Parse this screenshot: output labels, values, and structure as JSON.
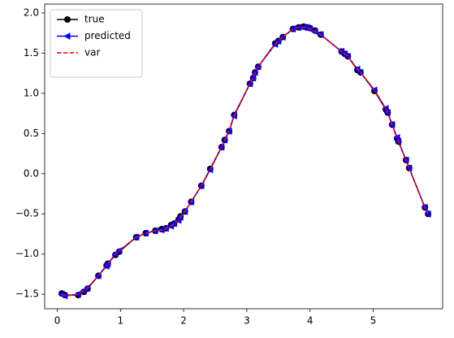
{
  "chart_data": {
    "type": "line",
    "x": [
      0.07,
      0.12,
      0.33,
      0.42,
      0.48,
      0.65,
      0.78,
      0.8,
      0.92,
      0.98,
      1.25,
      1.4,
      1.55,
      1.65,
      1.72,
      1.8,
      1.85,
      1.92,
      1.95,
      2.02,
      2.12,
      2.28,
      2.42,
      2.6,
      2.65,
      2.72,
      2.8,
      3.05,
      3.1,
      3.13,
      3.18,
      3.45,
      3.5,
      3.57,
      3.73,
      3.82,
      3.9,
      3.95,
      4.0,
      4.08,
      4.17,
      4.5,
      4.55,
      4.6,
      4.75,
      4.8,
      5.02,
      5.2,
      5.23,
      5.3,
      5.38,
      5.4,
      5.52,
      5.57,
      5.82,
      5.87
    ],
    "series": [
      {
        "name": "true",
        "color": "#000000",
        "marker": "circle",
        "linestyle": "solid",
        "values": [
          -1.49,
          -1.51,
          -1.51,
          -1.47,
          -1.43,
          -1.27,
          -1.14,
          -1.12,
          -1.01,
          -0.97,
          -0.79,
          -0.74,
          -0.71,
          -0.69,
          -0.68,
          -0.64,
          -0.62,
          -0.57,
          -0.53,
          -0.47,
          -0.35,
          -0.15,
          0.06,
          0.33,
          0.42,
          0.53,
          0.73,
          1.12,
          1.19,
          1.26,
          1.33,
          1.62,
          1.65,
          1.7,
          1.8,
          1.82,
          1.83,
          1.82,
          1.81,
          1.78,
          1.73,
          1.52,
          1.49,
          1.46,
          1.29,
          1.26,
          1.03,
          0.8,
          0.76,
          0.61,
          0.44,
          0.4,
          0.17,
          0.07,
          -0.42,
          -0.5
        ]
      },
      {
        "name": "predicted",
        "color": "#0000ff",
        "marker": "triangle-left",
        "linestyle": "solid",
        "values": [
          -1.5,
          -1.52,
          -1.5,
          -1.46,
          -1.42,
          -1.27,
          -1.15,
          -1.12,
          -1.0,
          -0.96,
          -0.79,
          -0.74,
          -0.71,
          -0.7,
          -0.68,
          -0.65,
          -0.62,
          -0.58,
          -0.54,
          -0.47,
          -0.35,
          -0.15,
          0.05,
          0.33,
          0.42,
          0.53,
          0.72,
          1.12,
          1.19,
          1.26,
          1.33,
          1.61,
          1.65,
          1.7,
          1.8,
          1.82,
          1.82,
          1.82,
          1.8,
          1.77,
          1.73,
          1.52,
          1.49,
          1.46,
          1.3,
          1.26,
          1.04,
          0.81,
          0.76,
          0.61,
          0.45,
          0.4,
          0.17,
          0.07,
          -0.42,
          -0.5
        ]
      },
      {
        "name": "var",
        "color": "#ff0000",
        "marker": "none",
        "linestyle": "dashed",
        "values": [
          -1.5,
          -1.52,
          -1.5,
          -1.46,
          -1.42,
          -1.27,
          -1.15,
          -1.12,
          -1.0,
          -0.96,
          -0.79,
          -0.74,
          -0.71,
          -0.7,
          -0.68,
          -0.65,
          -0.62,
          -0.58,
          -0.54,
          -0.47,
          -0.35,
          -0.15,
          0.05,
          0.33,
          0.42,
          0.53,
          0.72,
          1.12,
          1.19,
          1.26,
          1.33,
          1.61,
          1.65,
          1.7,
          1.8,
          1.82,
          1.82,
          1.82,
          1.8,
          1.77,
          1.73,
          1.52,
          1.49,
          1.46,
          1.3,
          1.26,
          1.04,
          0.81,
          0.76,
          0.61,
          0.45,
          0.4,
          0.17,
          0.07,
          -0.42,
          -0.5
        ]
      }
    ],
    "xlim": [
      -0.2,
      6.1
    ],
    "ylim": [
      -1.68,
      2.11
    ],
    "xticks": [
      0,
      1,
      2,
      3,
      4,
      5
    ],
    "yticks": [
      {
        "value": -1.5,
        "label": "−1.5"
      },
      {
        "value": -1.0,
        "label": "−1.0"
      },
      {
        "value": -0.5,
        "label": "−0.5"
      },
      {
        "value": 0,
        "label": "0.0"
      },
      {
        "value": 0.5,
        "label": "0.5"
      },
      {
        "value": 1.0,
        "label": "1.0"
      },
      {
        "value": 1.5,
        "label": "1.5"
      },
      {
        "value": 2.0,
        "label": "2.0"
      }
    ],
    "legend": "upper left",
    "grid": false
  }
}
